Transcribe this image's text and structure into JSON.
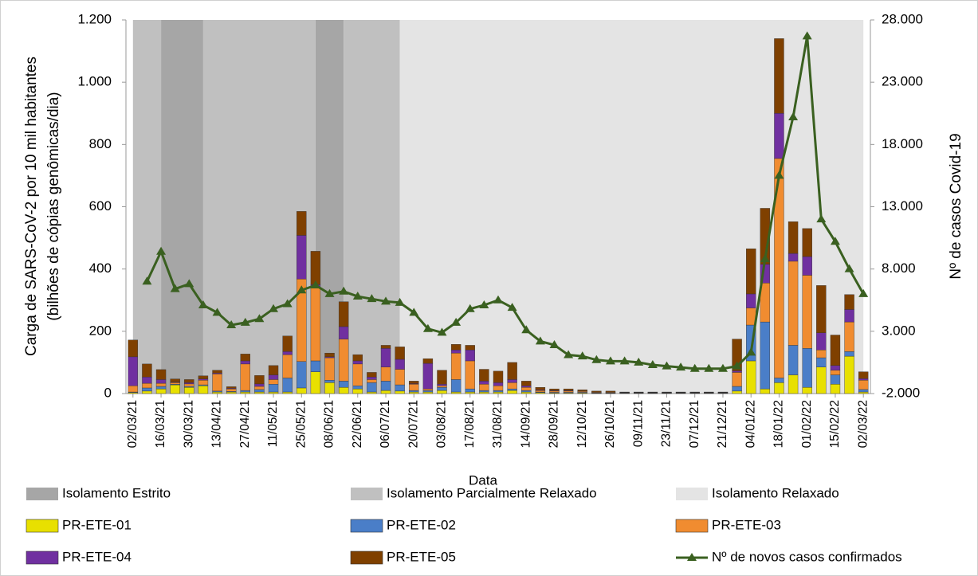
{
  "chart_data": {
    "type": "stacked_bar_line",
    "x_label": "Data",
    "y_label": [
      "Carga de SARS-CoV-2 por 10 mil habitantes",
      "(bilhões de cópias genômicas/dia)"
    ],
    "y2_label": "Nº de casos Covid-19",
    "categories": [
      "02/03/21",
      null,
      "16/03/21",
      null,
      "30/03/21",
      null,
      "13/04/21",
      null,
      "27/04/21",
      null,
      "11/05/21",
      null,
      "25/05/21",
      null,
      "08/06/21",
      null,
      "22/06/21",
      null,
      "06/07/21",
      null,
      "20/07/21",
      null,
      "03/08/21",
      null,
      "17/08/21",
      null,
      "31/08/21",
      null,
      "14/09/21",
      null,
      "28/09/21",
      null,
      "12/10/21",
      null,
      "26/10/21",
      null,
      "09/11/21",
      null,
      "23/11/21",
      null,
      "07/12/21",
      null,
      "21/12/21",
      null,
      "04/01/22",
      null,
      "18/01/22",
      null,
      "01/02/22",
      null,
      "15/02/22",
      null,
      "02/03/22"
    ],
    "regions": [
      {
        "name": "Isolamento Estrito",
        "color": "#a6a6a6",
        "ranges": [
          [
            2,
            5
          ],
          [
            13,
            15
          ]
        ]
      },
      {
        "name": "Isolamento Parcialmente Relaxado",
        "color": "#c0c0c0",
        "ranges": [
          [
            0,
            2
          ],
          [
            5,
            13
          ],
          [
            15,
            19
          ]
        ]
      },
      {
        "name": "Isolamento Relaxado",
        "color": "#e4e4e4",
        "ranges": [
          [
            19,
            52
          ]
        ]
      }
    ],
    "series": [
      {
        "name": "PR-ETE-01",
        "color": "#e8e000",
        "values": [
          3,
          8,
          15,
          28,
          20,
          25,
          5,
          5,
          5,
          5,
          5,
          5,
          18,
          70,
          35,
          20,
          15,
          5,
          10,
          8,
          5,
          5,
          10,
          5,
          5,
          5,
          5,
          10,
          5,
          3,
          2,
          2,
          2,
          1,
          1,
          1,
          1,
          1,
          1,
          1,
          1,
          1,
          1,
          8,
          105,
          15,
          35,
          60,
          20,
          85,
          30,
          120,
          5
        ]
      },
      {
        "name": "PR-ETE-02",
        "color": "#4a7ec8",
        "values": [
          2,
          10,
          8,
          2,
          3,
          3,
          3,
          2,
          5,
          8,
          25,
          45,
          85,
          35,
          8,
          20,
          10,
          30,
          30,
          20,
          5,
          5,
          10,
          40,
          10,
          5,
          5,
          5,
          5,
          2,
          2,
          2,
          2,
          1,
          1,
          1,
          1,
          1,
          1,
          1,
          1,
          1,
          1,
          15,
          115,
          215,
          15,
          95,
          125,
          30,
          30,
          15,
          8
        ]
      },
      {
        "name": "PR-ETE-03",
        "color": "#f08c30",
        "values": [
          20,
          15,
          10,
          5,
          8,
          15,
          55,
          8,
          85,
          10,
          15,
          75,
          265,
          235,
          72,
          135,
          70,
          10,
          45,
          50,
          20,
          5,
          5,
          85,
          90,
          20,
          15,
          20,
          10,
          5,
          4,
          4,
          3,
          2,
          2,
          1,
          1,
          1,
          1,
          1,
          1,
          1,
          1,
          45,
          55,
          125,
          705,
          270,
          235,
          25,
          15,
          95,
          30
        ]
      },
      {
        "name": "PR-ETE-04",
        "color": "#7030a0",
        "values": [
          93,
          20,
          12,
          2,
          4,
          4,
          3,
          2,
          10,
          8,
          15,
          10,
          140,
          10,
          3,
          40,
          10,
          8,
          60,
          32,
          2,
          82,
          5,
          10,
          35,
          10,
          10,
          10,
          5,
          2,
          2,
          2,
          1,
          1,
          1,
          1,
          1,
          1,
          1,
          1,
          1,
          1,
          1,
          5,
          45,
          60,
          145,
          25,
          60,
          55,
          15,
          40,
          5
        ]
      },
      {
        "name": "PR-ETE-05",
        "color": "#7f4000",
        "values": [
          54,
          42,
          32,
          10,
          10,
          10,
          9,
          5,
          22,
          27,
          30,
          50,
          77,
          107,
          12,
          80,
          20,
          15,
          10,
          40,
          8,
          15,
          45,
          18,
          15,
          38,
          37,
          55,
          15,
          8,
          5,
          5,
          4,
          3,
          3,
          1,
          1,
          1,
          1,
          1,
          1,
          1,
          1,
          102,
          145,
          180,
          240,
          102,
          90,
          152,
          98,
          48,
          22
        ]
      },
      {
        "name": "Nº de novos casos confirmados",
        "color": "#3a6020",
        "axis": "y2",
        "values": [
          null,
          7000,
          9400,
          6400,
          6800,
          5100,
          4500,
          3500,
          3700,
          4000,
          4800,
          5200,
          6300,
          6700,
          6000,
          6200,
          5800,
          5600,
          5400,
          5300,
          4500,
          3200,
          2900,
          3700,
          4800,
          5100,
          5500,
          4900,
          3100,
          2200,
          1900,
          1100,
          1000,
          700,
          600,
          600,
          500,
          300,
          200,
          100,
          0,
          0,
          0,
          200,
          1300,
          8800,
          15500,
          20200,
          26700,
          12000,
          10200,
          8000,
          6000
        ]
      }
    ],
    "ylim": [
      0,
      1200
    ],
    "yticks": [
      0,
      200,
      400,
      600,
      800,
      {
        "value": 1000,
        "label": "1.000"
      },
      {
        "value": 1200,
        "label": "1.200"
      }
    ],
    "y2lim": [
      -2000,
      28000
    ],
    "y2ticks": [
      {
        "value": -2000,
        "label": "-2.000"
      },
      {
        "value": 3000,
        "label": "3.000"
      },
      {
        "value": 8000,
        "label": "8.000"
      },
      {
        "value": 13000,
        "label": "13.000"
      },
      {
        "value": 18000,
        "label": "18.000"
      },
      {
        "value": 23000,
        "label": "23.000"
      },
      {
        "value": 28000,
        "label": "28.000"
      }
    ]
  }
}
